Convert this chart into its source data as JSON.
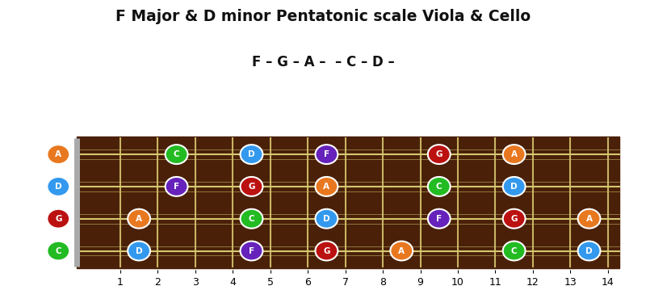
{
  "title": "F Major & D minor Pentatonic scale Viola & Cello",
  "subtitle": "F – G – A –  – C – D –",
  "strings": [
    "A",
    "D",
    "G",
    "C"
  ],
  "note_colors": {
    "A": "#E87820",
    "D": "#3399EE",
    "G": "#BB1111",
    "C": "#22BB22",
    "F": "#6622BB"
  },
  "fingerboard_color": "#4A2008",
  "fret_color": "#C8B464",
  "string_color": "#D4C870",
  "nut_color": "#AAAAAA",
  "bg_color": "#FFFFFF",
  "notes": {
    "A": [
      [
        0,
        "A"
      ],
      [
        3,
        "C"
      ],
      [
        5,
        "D"
      ],
      [
        7,
        "F"
      ],
      [
        10,
        "G"
      ],
      [
        12,
        "A"
      ]
    ],
    "D": [
      [
        0,
        "D"
      ],
      [
        3,
        "F"
      ],
      [
        5,
        "G"
      ],
      [
        7,
        "A"
      ],
      [
        10,
        "C"
      ],
      [
        12,
        "D"
      ]
    ],
    "G": [
      [
        0,
        "G"
      ],
      [
        2,
        "A"
      ],
      [
        5,
        "C"
      ],
      [
        7,
        "D"
      ],
      [
        10,
        "F"
      ],
      [
        12,
        "G"
      ],
      [
        14,
        "A"
      ]
    ],
    "C": [
      [
        0,
        "C"
      ],
      [
        2,
        "D"
      ],
      [
        5,
        "F"
      ],
      [
        7,
        "G"
      ],
      [
        9,
        "A"
      ],
      [
        12,
        "C"
      ],
      [
        14,
        "D"
      ]
    ]
  },
  "figsize": [
    8.0,
    3.8
  ],
  "dpi": 100
}
